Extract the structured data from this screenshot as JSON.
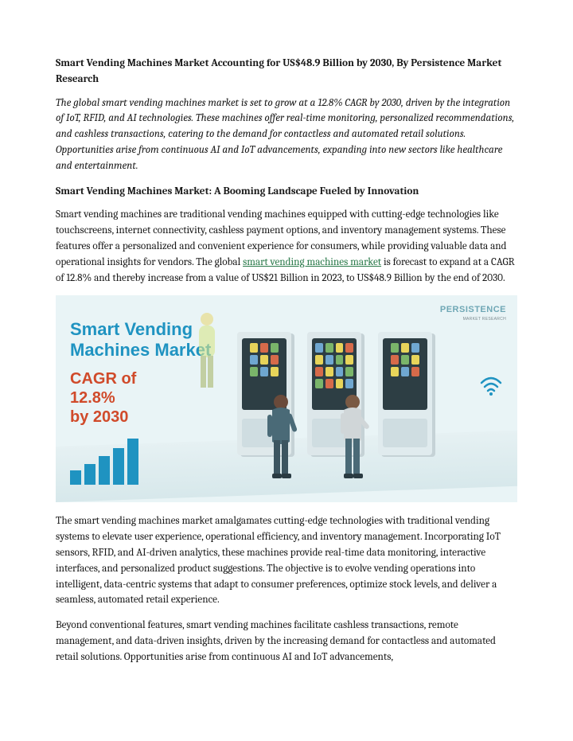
{
  "title": "Smart Vending Machines Market Accounting for US$48.9 Billion by 2030, By Persistence Market Research",
  "intro": "The global smart vending machines market is set to grow at a 12.8% CAGR by 2030, driven by the integration of IoT, RFID, and AI technologies. These machines offer real-time monitoring, personalized recommendations, and cashless transactions, catering to the demand for contactless and automated retail solutions. Opportunities arise from continuous AI and IoT advancements, expanding into new sectors like healthcare and entertainment.",
  "subhead": "Smart Vending Machines Market: A Booming Landscape Fueled by Innovation",
  "para1_a": "Smart vending machines are traditional vending machines equipped with cutting-edge technologies like touchscreens, internet connectivity, cashless payment options, and inventory management systems. These features offer a personalized and convenient experience for consumers, while providing valuable data and operational insights for vendors. The global ",
  "link_text": "smart vending machines market",
  "para1_b": " is forecast to expand at a CAGR of 12.8% and thereby increase from a value of US$21 Billion in 2023, to US$48.9 Billion by the end of 2030.",
  "infographic": {
    "title_l1": "Smart Vending",
    "title_l2": "Machines Market",
    "cagr_l1": "CAGR of",
    "cagr_l2": "12.8%",
    "cagr_l3": "by 2030",
    "brand": "PERSISTENCE",
    "brand_sub": "MARKET RESEARCH",
    "bar_color": "#1f93c1",
    "title_color": "#1f93c1",
    "cagr_color": "#d04a2a",
    "bg_color": "#e9f4f6",
    "bars": [
      18,
      26,
      36,
      46,
      58
    ],
    "wifi_color": "#1f93c1"
  },
  "para2": "The smart vending machines market amalgamates cutting-edge technologies with traditional vending systems to elevate user experience, operational efficiency, and inventory management. Incorporating IoT sensors, RFID, and AI-driven analytics, these machines provide real-time data monitoring, interactive interfaces, and personalized product suggestions. The objective is to evolve vending operations into intelligent, data-centric systems that adapt to consumer preferences, optimize stock levels, and deliver a seamless, automated retail experience.",
  "para3": "Beyond conventional features, smart vending machines facilitate cashless transactions, remote management, and data-driven insights, driven by the increasing demand for contactless and automated retail solutions. Opportunities arise from continuous AI and IoT advancements,"
}
